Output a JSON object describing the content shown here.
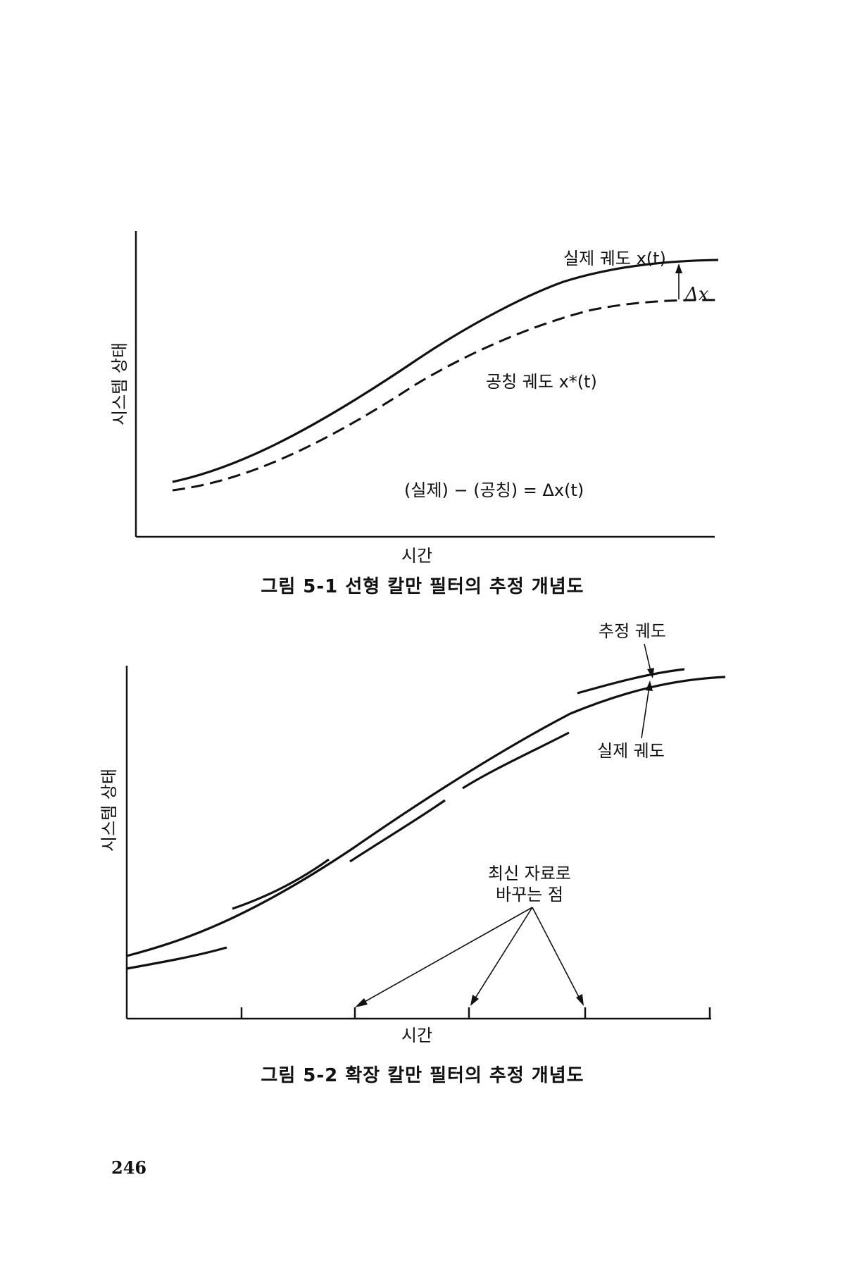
{
  "figures": [
    {
      "ylabel": "시스템 상태",
      "xlabel": "시간",
      "actual_label": "실제 궤도 x(t)",
      "delta_label": "Δx",
      "nominal_label": "공칭 궤도 x*(t)",
      "equation": "(실제) − (공칭) = Δx(t)",
      "caption": "그림 5-1  선형 칼만 필터의 추정 개념도"
    },
    {
      "ylabel": "시스템 상태",
      "xlabel": "시간",
      "estimate_label": "추정 궤도",
      "actual_label": "실제 궤도",
      "update_label_line1": "최신 자료로",
      "update_label_line2": "바꾸는 점",
      "caption": "그림 5-2  확장 칼만 필터의 추정 개념도"
    }
  ],
  "page_number": "246"
}
